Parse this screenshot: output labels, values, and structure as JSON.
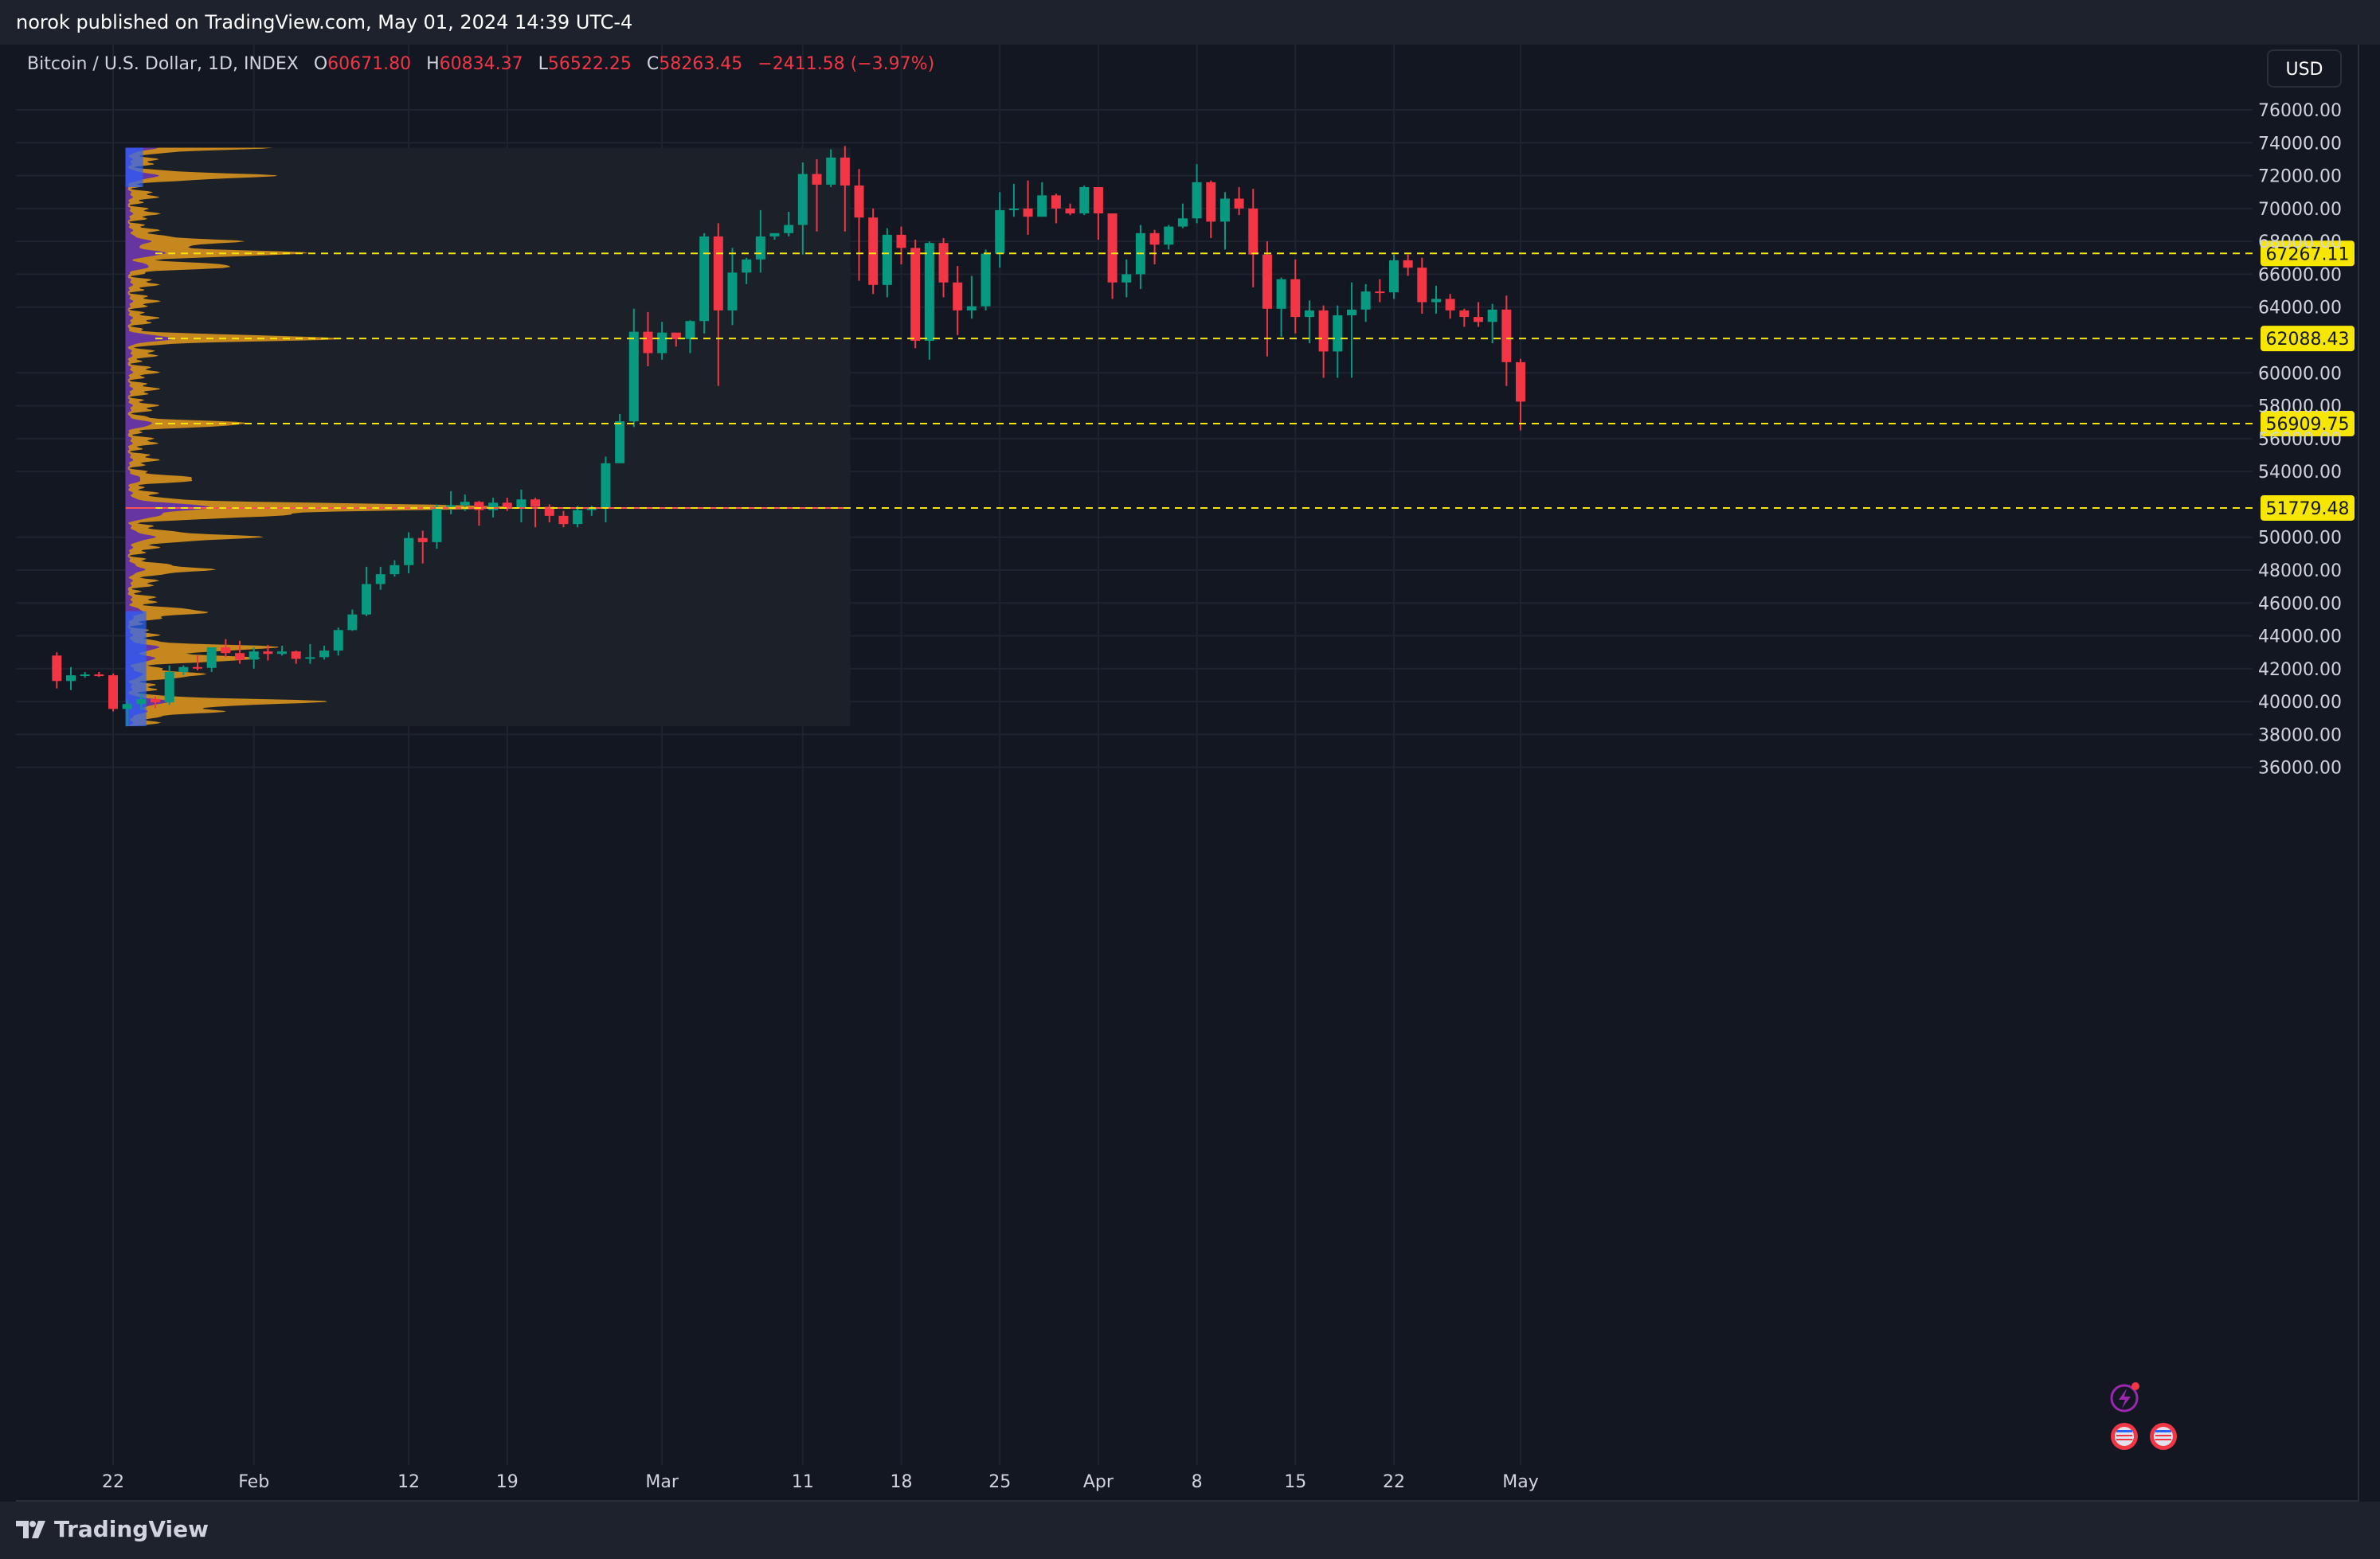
{
  "header": {
    "published_text": "norok published on TradingView.com, May 01, 2024 14:39 UTC-4"
  },
  "legend": {
    "symbol": "Bitcoin / U.S. Dollar, 1D, INDEX",
    "o_label": "O",
    "o_value": "60671.80",
    "h_label": "H",
    "h_value": "60834.37",
    "l_label": "L",
    "l_value": "56522.25",
    "c_label": "C",
    "c_value": "58263.45",
    "change": "−2411.58 (−3.97%)"
  },
  "currency_button": "USD",
  "footer": {
    "brand": "TradingView"
  },
  "colors": {
    "up": "#089981",
    "down": "#f23645",
    "level_line": "#f7e600",
    "poc_line": "#ff5252",
    "profile_up": "#e39a1c",
    "profile_down": "#5c2cb0",
    "background": "#131722"
  },
  "chart_data": {
    "type": "candlestick",
    "x_axis_labels": [
      {
        "d": "01-22",
        "t": "22"
      },
      {
        "d": "02-01",
        "t": "Feb"
      },
      {
        "d": "02-12",
        "t": "12"
      },
      {
        "d": "02-19",
        "t": "19"
      },
      {
        "d": "03-01",
        "t": "Mar"
      },
      {
        "d": "03-11",
        "t": "11"
      },
      {
        "d": "03-18",
        "t": "18"
      },
      {
        "d": "03-25",
        "t": "25"
      },
      {
        "d": "04-01",
        "t": "Apr"
      },
      {
        "d": "04-08",
        "t": "8"
      },
      {
        "d": "04-15",
        "t": "15"
      },
      {
        "d": "04-22",
        "t": "22"
      },
      {
        "d": "05-01",
        "t": "May"
      }
    ],
    "y_ticks": [
      "76000.00",
      "74000.00",
      "72000.00",
      "70000.00",
      "68000.00",
      "66000.00",
      "64000.00",
      "60000.00",
      "58000.00",
      "56000.00",
      "54000.00",
      "50000.00",
      "48000.00",
      "46000.00",
      "44000.00",
      "42000.00",
      "40000.00",
      "38000.00",
      "36000.00"
    ],
    "ylim": [
      35000,
      77500
    ],
    "horizontal_levels": [
      "67267.11",
      "62088.43",
      "56909.75",
      "51779.48"
    ],
    "volume_profile": {
      "range_start": "01-23",
      "range_end": "03-14",
      "low": 38500,
      "high": 73700,
      "poc": 51779.48
    },
    "candles": [
      [
        "01-18",
        42800,
        43000,
        40800,
        41250
      ],
      [
        "01-19",
        41250,
        42100,
        40700,
        41600
      ],
      [
        "01-20",
        41600,
        41800,
        41450,
        41650
      ],
      [
        "01-21",
        41650,
        41800,
        41500,
        41600
      ],
      [
        "01-22",
        41600,
        41700,
        39400,
        39550
      ],
      [
        "01-23",
        39550,
        40100,
        38500,
        39850
      ],
      [
        "01-24",
        39850,
        40500,
        39500,
        40150
      ],
      [
        "01-25",
        40150,
        40300,
        39600,
        39950
      ],
      [
        "01-26",
        39950,
        42200,
        39800,
        41800
      ],
      [
        "01-27",
        41800,
        42200,
        41600,
        42100
      ],
      [
        "01-28",
        42100,
        42800,
        41900,
        42050
      ],
      [
        "01-29",
        42050,
        43300,
        41800,
        43300
      ],
      [
        "01-30",
        43300,
        43800,
        42700,
        42950
      ],
      [
        "01-31",
        42950,
        43700,
        42300,
        42550
      ],
      [
        "02-01",
        42550,
        43300,
        42000,
        43050
      ],
      [
        "02-02",
        43050,
        43450,
        42500,
        42900
      ],
      [
        "02-03",
        42900,
        43400,
        42800,
        43050
      ],
      [
        "02-04",
        43050,
        43100,
        42300,
        42600
      ],
      [
        "02-05",
        42600,
        43500,
        42300,
        42700
      ],
      [
        "02-06",
        42700,
        43400,
        42550,
        43100
      ],
      [
        "02-07",
        43100,
        44500,
        42800,
        44350
      ],
      [
        "02-08",
        44350,
        45600,
        44300,
        45300
      ],
      [
        "02-09",
        45300,
        48200,
        45200,
        47150
      ],
      [
        "02-10",
        47150,
        48200,
        46800,
        47750
      ],
      [
        "02-11",
        47750,
        48600,
        47600,
        48300
      ],
      [
        "02-12",
        48300,
        50300,
        47800,
        49950
      ],
      [
        "02-13",
        49950,
        50400,
        48400,
        49700
      ],
      [
        "02-14",
        49700,
        52000,
        49300,
        51850
      ],
      [
        "02-15",
        51850,
        52800,
        51400,
        51950
      ],
      [
        "02-16",
        51950,
        52600,
        51600,
        52150
      ],
      [
        "02-17",
        52150,
        52200,
        50700,
        51650
      ],
      [
        "02-18",
        51650,
        52400,
        51200,
        52100
      ],
      [
        "02-19",
        52100,
        52400,
        51600,
        51800
      ],
      [
        "02-20",
        51800,
        52900,
        50900,
        52300
      ],
      [
        "02-21",
        52300,
        52400,
        50600,
        51850
      ],
      [
        "02-22",
        51850,
        52000,
        50900,
        51300
      ],
      [
        "02-23",
        51300,
        51600,
        50600,
        50800
      ],
      [
        "02-24",
        50800,
        51900,
        50600,
        51650
      ],
      [
        "02-25",
        51650,
        51900,
        51300,
        51750
      ],
      [
        "02-26",
        51750,
        54900,
        50900,
        54500
      ],
      [
        "02-27",
        54500,
        57500,
        54500,
        57050
      ],
      [
        "02-28",
        57050,
        63900,
        56700,
        62500
      ],
      [
        "02-29",
        62500,
        63700,
        60400,
        61200
      ],
      [
        "03-01",
        61200,
        63100,
        60800,
        62450
      ],
      [
        "03-02",
        62450,
        62400,
        61600,
        62050
      ],
      [
        "03-03",
        62050,
        63200,
        61200,
        63150
      ],
      [
        "03-04",
        63150,
        68500,
        62400,
        68300
      ],
      [
        "03-05",
        68300,
        69100,
        59200,
        63800
      ],
      [
        "03-06",
        63800,
        67600,
        62900,
        66100
      ],
      [
        "03-07",
        66100,
        67000,
        65400,
        66900
      ],
      [
        "03-08",
        66900,
        69900,
        66100,
        68300
      ],
      [
        "03-09",
        68300,
        68500,
        68100,
        68500
      ],
      [
        "03-10",
        68500,
        69800,
        68300,
        69000
      ],
      [
        "03-11",
        69000,
        72800,
        67200,
        72100
      ],
      [
        "03-12",
        72100,
        73000,
        68600,
        71450
      ],
      [
        "03-13",
        71450,
        73600,
        71300,
        73100
      ],
      [
        "03-14",
        73100,
        73800,
        68600,
        71400
      ],
      [
        "03-15",
        71400,
        72400,
        65600,
        69450
      ],
      [
        "03-16",
        69450,
        70000,
        64800,
        65350
      ],
      [
        "03-17",
        65350,
        68800,
        64600,
        68400
      ],
      [
        "03-18",
        68400,
        68900,
        66600,
        67600
      ],
      [
        "03-19",
        67600,
        68100,
        61500,
        61950
      ],
      [
        "03-20",
        61950,
        68000,
        60800,
        67900
      ],
      [
        "03-21",
        67900,
        68200,
        64600,
        65500
      ],
      [
        "03-22",
        65500,
        66500,
        62300,
        63800
      ],
      [
        "03-23",
        63800,
        65900,
        63300,
        64050
      ],
      [
        "03-24",
        64050,
        67500,
        63800,
        67250
      ],
      [
        "03-25",
        67250,
        71000,
        66400,
        69900
      ],
      [
        "03-26",
        69900,
        71500,
        69500,
        70000
      ],
      [
        "03-27",
        70000,
        71700,
        68400,
        69500
      ],
      [
        "03-28",
        69500,
        71600,
        69500,
        70800
      ],
      [
        "03-29",
        70800,
        70900,
        69100,
        70000
      ],
      [
        "03-30",
        70000,
        70300,
        69600,
        69700
      ],
      [
        "03-31",
        69700,
        71400,
        69600,
        71300
      ],
      [
        "04-01",
        71300,
        71300,
        68100,
        69700
      ],
      [
        "04-02",
        69700,
        69700,
        64500,
        65500
      ],
      [
        "04-03",
        65500,
        66900,
        64600,
        66000
      ],
      [
        "04-04",
        66000,
        69000,
        65100,
        68500
      ],
      [
        "04-05",
        68500,
        68700,
        66600,
        67800
      ],
      [
        "04-06",
        67800,
        69000,
        67500,
        68900
      ],
      [
        "04-07",
        68900,
        70300,
        68800,
        69400
      ],
      [
        "04-08",
        69400,
        72700,
        69100,
        71600
      ],
      [
        "04-09",
        71600,
        71700,
        68200,
        69200
      ],
      [
        "04-10",
        69200,
        71000,
        67500,
        70600
      ],
      [
        "04-11",
        70600,
        71300,
        69600,
        70000
      ],
      [
        "04-12",
        70000,
        71200,
        65200,
        67200
      ],
      [
        "04-13",
        67200,
        68000,
        61000,
        63900
      ],
      [
        "04-14",
        63900,
        65800,
        62200,
        65700
      ],
      [
        "04-15",
        65700,
        66900,
        62400,
        63400
      ],
      [
        "04-16",
        63400,
        64400,
        61800,
        63800
      ],
      [
        "04-17",
        63800,
        64100,
        59700,
        61300
      ],
      [
        "04-18",
        61300,
        64100,
        59700,
        63500
      ],
      [
        "04-19",
        63500,
        65500,
        59700,
        63850
      ],
      [
        "04-20",
        63850,
        65400,
        63100,
        64950
      ],
      [
        "04-21",
        64950,
        65700,
        64300,
        64900
      ],
      [
        "04-22",
        64900,
        67200,
        64500,
        66850
      ],
      [
        "04-23",
        66850,
        67200,
        65900,
        66400
      ],
      [
        "04-24",
        66400,
        67000,
        63600,
        64300
      ],
      [
        "04-25",
        64300,
        65300,
        63600,
        64500
      ],
      [
        "04-26",
        64500,
        64800,
        63300,
        63800
      ],
      [
        "04-27",
        63800,
        63900,
        62800,
        63400
      ],
      [
        "04-28",
        63400,
        64300,
        62800,
        63100
      ],
      [
        "04-29",
        63100,
        64200,
        61800,
        63850
      ],
      [
        "04-30",
        63850,
        64700,
        59200,
        60650
      ],
      [
        "05-01",
        60650,
        60850,
        56500,
        58250
      ]
    ]
  }
}
